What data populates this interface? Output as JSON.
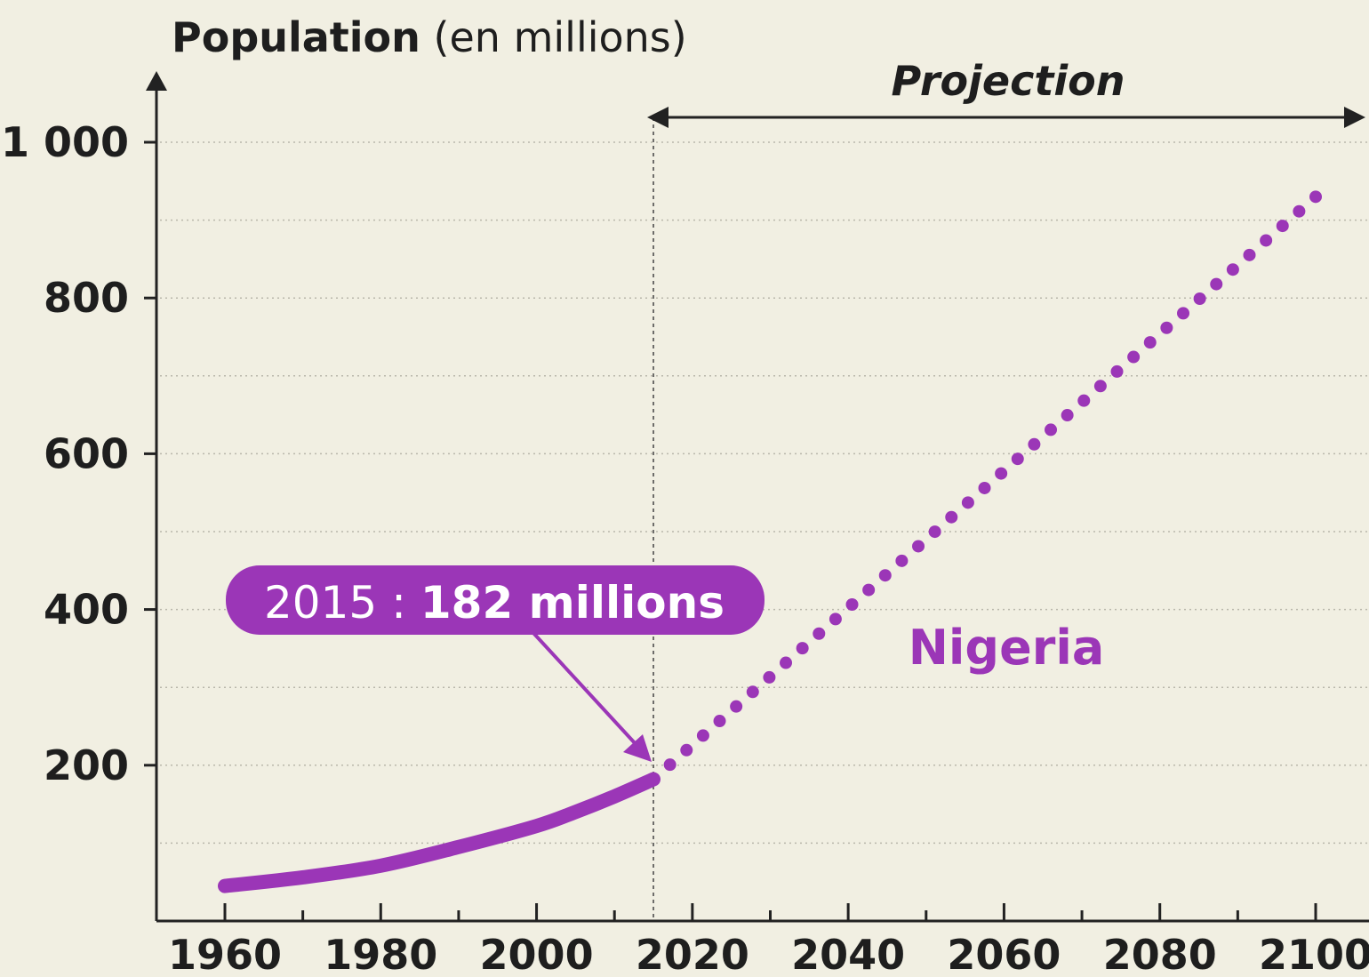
{
  "chart_data": {
    "type": "line",
    "ylabel_bold": "Population",
    "ylabel_rest": " (en millions)",
    "x_ticks": [
      "1960",
      "1980",
      "2000",
      "2020",
      "2040",
      "2060",
      "2080",
      "2100"
    ],
    "y_ticks": [
      "200",
      "400",
      "600",
      "800",
      "1 000"
    ],
    "xlim": [
      1960,
      2100
    ],
    "ylim": [
      0,
      1000
    ],
    "grid": true,
    "projection_label": "Projection",
    "projection_start": 2015,
    "series": [
      {
        "name": "Nigeria",
        "historical": {
          "x": [
            1960,
            1970,
            1980,
            1990,
            2000,
            2005,
            2010,
            2015
          ],
          "y": [
            45,
            56,
            71,
            95,
            122,
            140,
            160,
            182
          ]
        },
        "projection": {
          "x": [
            2015,
            2100
          ],
          "y": [
            182,
            930
          ]
        }
      }
    ],
    "annotation": {
      "year_text": "2015 : ",
      "value_text": "182 millions"
    },
    "colors": {
      "series": "#9b36b7",
      "axis": "#222222",
      "text": "#1e1e1e",
      "grid": "#b9b7ab",
      "background": "#f1efe2"
    }
  }
}
